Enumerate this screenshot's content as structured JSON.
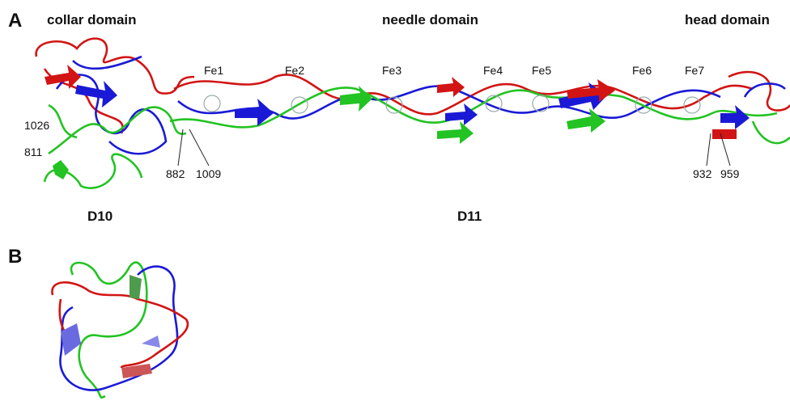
{
  "panels": [
    {
      "label": "A",
      "domains": [
        "collar domain",
        "needle domain",
        "head domain"
      ],
      "iron_sites": [
        "Fe1",
        "Fe2",
        "Fe3",
        "Fe4",
        "Fe5",
        "Fe6",
        "Fe7"
      ],
      "residues": [
        "1026",
        "811",
        "882",
        "1009",
        "932",
        "959"
      ],
      "regions": [
        "D10",
        "D11"
      ]
    },
    {
      "label": "B"
    }
  ]
}
